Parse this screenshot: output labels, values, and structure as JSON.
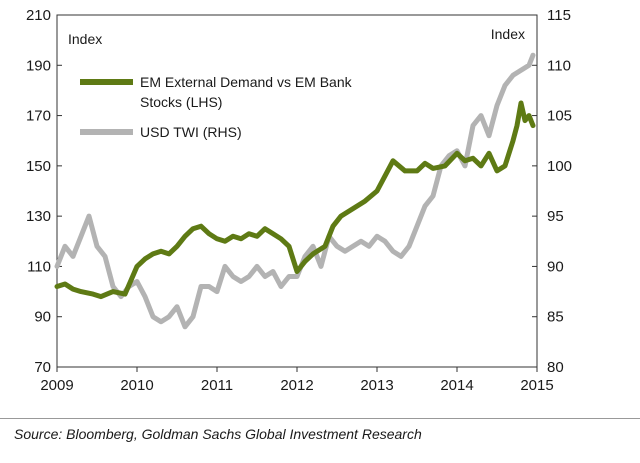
{
  "chart_data": {
    "type": "line",
    "title": "",
    "x_ticks": [
      "2009",
      "2010",
      "2011",
      "2012",
      "2013",
      "2014",
      "2015"
    ],
    "xlim": [
      2009.0,
      2015.0
    ],
    "left_axis": {
      "label": "Index",
      "ylim": [
        70,
        210
      ],
      "ticks": [
        "70",
        "90",
        "110",
        "130",
        "150",
        "170",
        "190",
        "210"
      ]
    },
    "right_axis": {
      "label": "Index",
      "ylim": [
        80,
        115
      ],
      "ticks": [
        "80",
        "85",
        "90",
        "95",
        "100",
        "105",
        "110",
        "115"
      ]
    },
    "grid": false,
    "legend_position": "top-left",
    "series": [
      {
        "name": "EM External Demand vs EM Bank Stocks (LHS)",
        "legend_lines": [
          "EM External Demand vs EM Bank",
          "Stocks (LHS)"
        ],
        "axis": "left",
        "color": "#5e7a14",
        "x": [
          2009.0,
          2009.1,
          2009.2,
          2009.3,
          2009.45,
          2009.55,
          2009.7,
          2009.85,
          2010.0,
          2010.1,
          2010.2,
          2010.3,
          2010.4,
          2010.5,
          2010.6,
          2010.7,
          2010.8,
          2010.9,
          2011.0,
          2011.1,
          2011.2,
          2011.3,
          2011.4,
          2011.5,
          2011.6,
          2011.7,
          2011.8,
          2011.9,
          2012.0,
          2012.1,
          2012.2,
          2012.35,
          2012.45,
          2012.55,
          2012.7,
          2012.85,
          2013.0,
          2013.1,
          2013.2,
          2013.35,
          2013.5,
          2013.6,
          2013.7,
          2013.85,
          2014.0,
          2014.1,
          2014.2,
          2014.3,
          2014.4,
          2014.5,
          2014.6,
          2014.7,
          2014.75,
          2014.8,
          2014.85,
          2014.9,
          2014.95
        ],
        "values": [
          102,
          103,
          101,
          100,
          99,
          98,
          100,
          99,
          110,
          113,
          115,
          116,
          115,
          118,
          122,
          125,
          126,
          123,
          121,
          120,
          122,
          121,
          123,
          122,
          125,
          123,
          121,
          118,
          108,
          112,
          115,
          118,
          126,
          130,
          133,
          136,
          140,
          146,
          152,
          148,
          148,
          151,
          149,
          150,
          155,
          152,
          153,
          150,
          155,
          148,
          150,
          160,
          166,
          175,
          168,
          170,
          166
        ]
      },
      {
        "name": "USD TWI (RHS)",
        "legend_lines": [
          "USD TWI (RHS)"
        ],
        "axis": "right",
        "color": "#b3b3b3",
        "x": [
          2009.0,
          2009.1,
          2009.2,
          2009.3,
          2009.4,
          2009.5,
          2009.6,
          2009.7,
          2009.8,
          2009.9,
          2010.0,
          2010.1,
          2010.2,
          2010.3,
          2010.4,
          2010.5,
          2010.6,
          2010.7,
          2010.8,
          2010.9,
          2011.0,
          2011.1,
          2011.2,
          2011.3,
          2011.4,
          2011.5,
          2011.6,
          2011.7,
          2011.8,
          2011.9,
          2012.0,
          2012.1,
          2012.2,
          2012.3,
          2012.4,
          2012.5,
          2012.6,
          2012.7,
          2012.8,
          2012.9,
          2013.0,
          2013.1,
          2013.2,
          2013.3,
          2013.4,
          2013.5,
          2013.6,
          2013.7,
          2013.8,
          2013.9,
          2014.0,
          2014.1,
          2014.2,
          2014.3,
          2014.4,
          2014.5,
          2014.6,
          2014.7,
          2014.8,
          2014.9,
          2014.95
        ],
        "values": [
          90,
          92,
          91,
          93,
          95,
          92,
          91,
          88,
          87,
          88,
          88.5,
          87,
          85,
          84.5,
          85,
          86,
          84,
          85,
          88,
          88,
          87.5,
          90,
          89,
          88.5,
          89,
          90,
          89,
          89.5,
          88,
          89,
          89,
          91,
          92,
          90,
          93,
          92,
          91.5,
          92,
          92.5,
          92,
          93,
          92.5,
          91.5,
          91,
          92,
          94,
          96,
          97,
          100,
          101,
          101.5,
          100,
          104,
          105,
          103,
          106,
          108,
          109,
          109.5,
          110,
          111
        ]
      }
    ]
  },
  "source_text": "Source: Bloomberg, Goldman Sachs Global Investment Research"
}
